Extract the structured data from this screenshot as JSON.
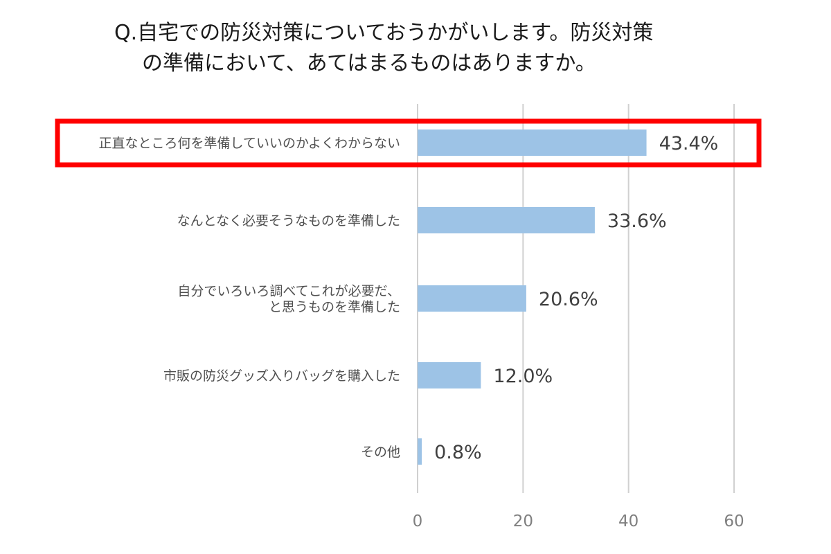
{
  "title": {
    "line1": "Q.自宅での防災対策についておうかがいします。防災対策",
    "line2": "の準備において、あてはまるものはありますか。"
  },
  "chart_data": {
    "type": "bar",
    "orientation": "horizontal",
    "categories": [
      [
        "正直なところ何を準備していいのかよくわからない"
      ],
      [
        "なんとなく必要そうなものを準備した"
      ],
      [
        "自分でいろいろ調べてこれが必要だ、",
        "と思うものを準備した"
      ],
      [
        "市販の防災グッズ入りバッグを購入した"
      ],
      [
        "その他"
      ]
    ],
    "values": [
      43.4,
      33.6,
      20.6,
      12.0,
      0.8
    ],
    "value_labels": [
      "43.4%",
      "33.6%",
      "20.6%",
      "12.0%",
      "0.8%"
    ],
    "xlim": [
      0,
      60
    ],
    "x_ticks": [
      0,
      20,
      40,
      60
    ],
    "grid": true,
    "highlighted_index": 0,
    "colors": {
      "bar": "#9dc3e6",
      "highlight": "#ff0000",
      "grid": "#d0d0d0"
    }
  }
}
